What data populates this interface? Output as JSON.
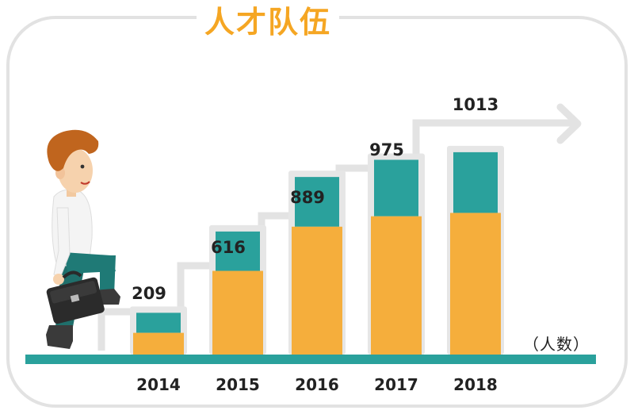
{
  "title": "人才队伍",
  "unit_label": "（人数）",
  "colors": {
    "title": "#f5a623",
    "bar_bottom": "#f5ae3c",
    "bar_top": "#2aa19c",
    "bar_frame": "#e6e6e6",
    "step_line": "#e3e3e3",
    "ground": "#2aa19c",
    "panel_border": "#e2e2e2"
  },
  "chart_data": {
    "type": "bar",
    "categories": [
      "2014",
      "2015",
      "2016",
      "2017",
      "2018"
    ],
    "values": [
      209,
      616,
      889,
      975,
      1013
    ],
    "value_labels": [
      "209",
      "616",
      "889",
      "975",
      "1013"
    ],
    "stacks": {
      "bottom_fraction": [
        0.52,
        0.68,
        0.72,
        0.71,
        0.7
      ]
    },
    "ylim": [
      0,
      1100
    ],
    "xlabel": "",
    "ylabel": "",
    "grid": false,
    "legend": "none"
  }
}
